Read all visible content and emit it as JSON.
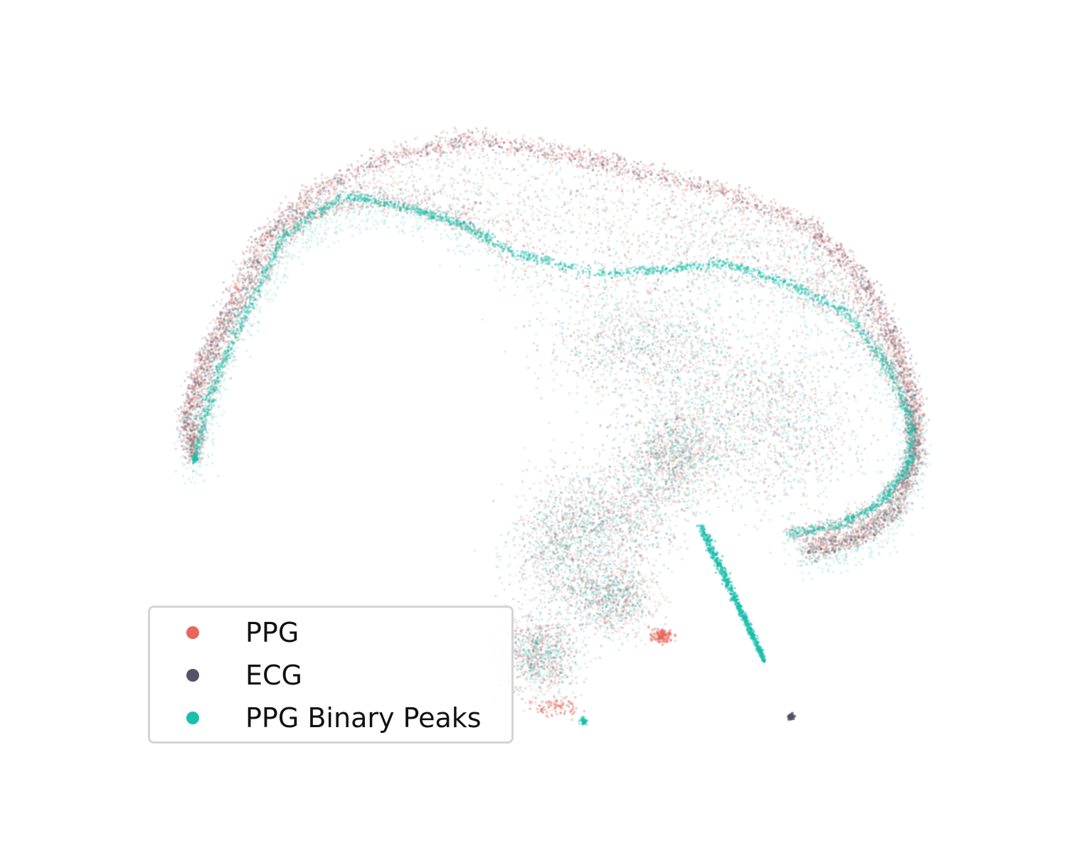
{
  "chart_data": {
    "type": "scatter",
    "title": "",
    "xlabel": "",
    "ylabel": "",
    "axes_visible": false,
    "grid": false,
    "legend_position": "lower-left",
    "series": [
      {
        "name": "PPG",
        "color": "#e8675a",
        "description_points": [
          [
            -6.2,
            1.0
          ],
          [
            -4.5,
            4.2
          ],
          [
            -1.0,
            5.5
          ],
          [
            2.5,
            5.0
          ],
          [
            4.8,
            3.2
          ],
          [
            4.6,
            -1.0
          ],
          [
            2.8,
            -2.4
          ],
          [
            0.3,
            -3.8
          ],
          [
            -0.9,
            -5.8
          ],
          [
            1.2,
            -4.2
          ]
        ]
      },
      {
        "name": "ECG",
        "color": "#55536a",
        "description_points": [
          [
            -6.0,
            0.8
          ],
          [
            -4.3,
            4.0
          ],
          [
            -1.2,
            5.6
          ],
          [
            2.0,
            4.8
          ],
          [
            4.9,
            3.0
          ],
          [
            4.7,
            -0.8
          ],
          [
            2.9,
            -2.5
          ],
          [
            0.1,
            -3.6
          ],
          [
            -0.8,
            -5.7
          ],
          [
            4.2,
            -6.3
          ]
        ]
      },
      {
        "name": "PPG Binary Peaks",
        "color": "#1abfad",
        "description_points": [
          [
            -5.9,
            0.9
          ],
          [
            -3.7,
            3.7
          ],
          [
            -0.8,
            2.8
          ],
          [
            1.8,
            2.4
          ],
          [
            4.5,
            1.2
          ],
          [
            4.4,
            -1.8
          ],
          [
            2.3,
            -2.0
          ],
          [
            0.8,
            -2.9
          ],
          [
            -0.6,
            -5.4
          ],
          [
            3.5,
            -4.7
          ]
        ]
      }
    ]
  }
}
